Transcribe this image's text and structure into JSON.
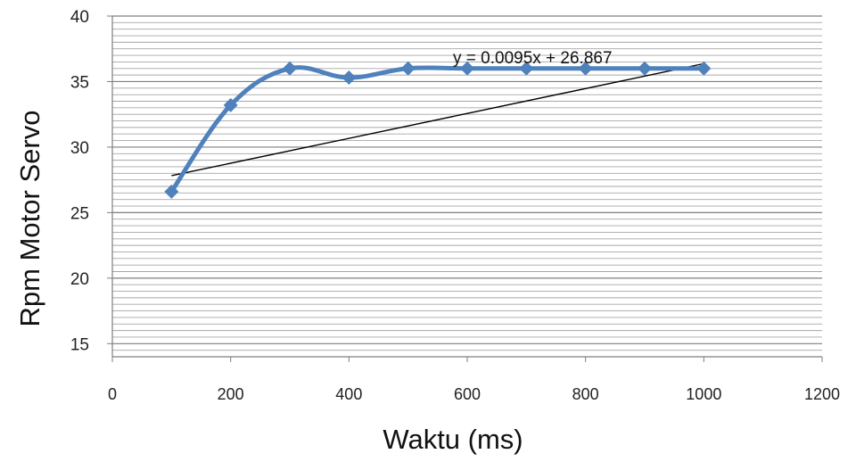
{
  "chart_data": {
    "type": "line",
    "title": "",
    "xlabel": "Waktu (ms)",
    "ylabel": "Rpm Motor Servo",
    "xlim": [
      0,
      1200
    ],
    "ylim": [
      14,
      40
    ],
    "x_ticks": [
      0,
      200,
      400,
      600,
      800,
      1000,
      1200
    ],
    "y_ticks": [
      15,
      20,
      25,
      30,
      35,
      40
    ],
    "minor_grid_step": 0.5,
    "grid": true,
    "legend": "none",
    "series": [
      {
        "x": [
          100,
          200,
          300,
          400,
          500,
          600,
          700,
          800,
          900,
          1000
        ],
        "y": [
          26.6,
          33.2,
          36.0,
          35.3,
          36.0,
          36.0,
          36.0,
          36.0,
          36.0,
          36.0
        ],
        "color": "#4f81bd",
        "marker": "diamond"
      }
    ],
    "trendline": {
      "slope": 0.0095,
      "intercept": 26.867,
      "x_range": [
        100,
        1000
      ],
      "color": "#000000",
      "equation_label": "y = 0.0095x + 26.867"
    }
  }
}
